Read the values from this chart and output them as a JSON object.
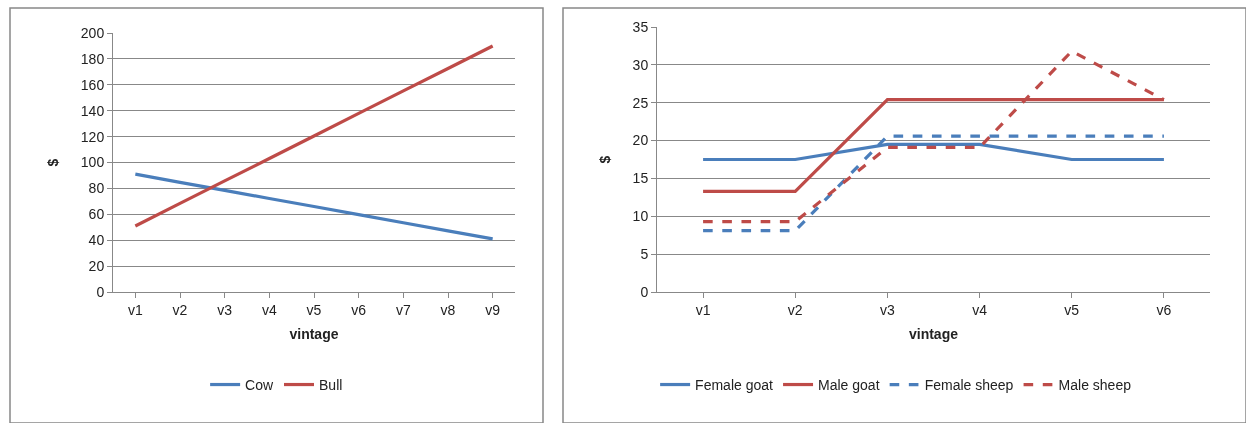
{
  "chart_data": [
    {
      "type": "line",
      "xlabel": "vintage",
      "ylabel": "$",
      "categories": [
        "v1",
        "v2",
        "v3",
        "v4",
        "v5",
        "v6",
        "v7",
        "v8",
        "v9"
      ],
      "ylim": [
        0,
        200
      ],
      "yticks": [
        0,
        20,
        40,
        60,
        80,
        100,
        120,
        140,
        160,
        180,
        200
      ],
      "grid": "y",
      "legend": "bottom",
      "marker": "none",
      "series": [
        {
          "name": "Cow",
          "color": "#4a7ebb",
          "values": [
            91,
            84.7,
            78.5,
            72.2,
            66,
            59.7,
            53.5,
            47.2,
            41
          ]
        },
        {
          "name": "Bull",
          "color": "#be4b48",
          "values": [
            51,
            68.4,
            85.8,
            103.1,
            120.5,
            137.9,
            155.3,
            172.6,
            190
          ]
        }
      ]
    },
    {
      "type": "line",
      "xlabel": "vintage",
      "ylabel": "$",
      "categories": [
        "v1",
        "v2",
        "v3",
        "v4",
        "v5",
        "v6"
      ],
      "ylim": [
        0,
        35
      ],
      "yticks": [
        0,
        5,
        10,
        15,
        20,
        25,
        30,
        35
      ],
      "grid": "y",
      "legend": "bottom",
      "marker": "none",
      "series": [
        {
          "name": "Female goat",
          "color": "#4a7ebb",
          "line_style": "solid",
          "values": [
            17.5,
            17.5,
            19.5,
            19.5,
            17.5,
            17.5
          ]
        },
        {
          "name": "Male goat",
          "color": "#be4b48",
          "line_style": "solid",
          "values": [
            13.3,
            13.3,
            25.4,
            25.4,
            25.4,
            25.4
          ]
        },
        {
          "name": "Female sheep",
          "color": "#4a7ebb",
          "line_style": "dashed",
          "values": [
            8.1,
            8.1,
            20.6,
            20.6,
            20.6,
            20.6
          ]
        },
        {
          "name": "Male sheep",
          "color": "#be4b48",
          "line_style": "dashed",
          "values": [
            9.3,
            9.3,
            19.1,
            19.1,
            31.8,
            25.4
          ]
        }
      ]
    }
  ]
}
